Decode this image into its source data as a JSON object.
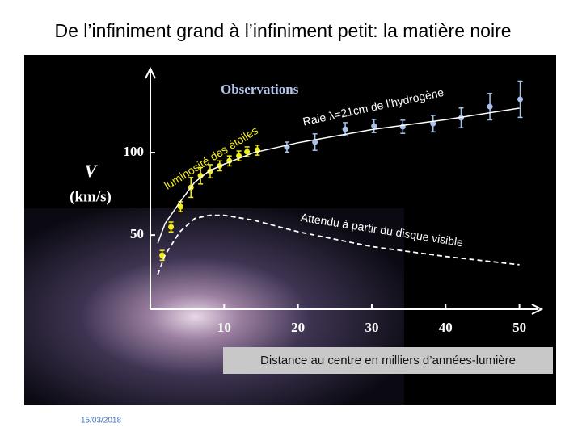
{
  "slide_title": "De l’infiniment grand à l’infiniment petit: la matière noire",
  "date": "15/03/2018",
  "chart_data": {
    "type": "scatter",
    "title": "Observations",
    "ylabel": "V",
    "ylabel_unit": "(km/s)",
    "xlabel": "Distance au centre en milliers d’années-lumière",
    "xlim": [
      0,
      53
    ],
    "ylim": [
      5,
      150
    ],
    "xticks": [
      10,
      20,
      30,
      40,
      50
    ],
    "yticks": [
      50,
      100
    ],
    "series": [
      {
        "name": "luminosité des étoiles",
        "color": "#f2ee1c",
        "style": "points",
        "x": [
          1.6,
          2.8,
          4.1,
          5.5,
          6.8,
          8.1,
          9.4,
          10.7,
          12.0,
          13.1,
          14.5
        ],
        "values": [
          37.7,
          54.9,
          67.2,
          78.9,
          86,
          88.7,
          92,
          95,
          98,
          100.5,
          101.5
        ],
        "errors": [
          3,
          3,
          3,
          6,
          5,
          4,
          3,
          3,
          3,
          3,
          3
        ]
      },
      {
        "name": "Raie λ=21cm de l’hydrogène",
        "color": "#a8c2ec",
        "style": "points",
        "x": [
          18.5,
          22.3,
          26.4,
          30.3,
          34.2,
          38.3,
          42.1,
          46.0,
          50.1
        ],
        "values": [
          103.4,
          106.4,
          114.2,
          116.2,
          115.7,
          117.6,
          121.1,
          127.9,
          132.4
        ],
        "errors": [
          3,
          5,
          4,
          4,
          4,
          5,
          6,
          8,
          11
        ]
      },
      {
        "color": "#ffffff",
        "style": "line",
        "x": [
          1,
          2,
          4,
          6,
          8,
          10,
          14,
          20,
          30,
          40,
          50
        ],
        "values": [
          45,
          57,
          70,
          82,
          89,
          93,
          100,
          106,
          114,
          120,
          127
        ]
      },
      {
        "name": "Attendu à partir du disque visible",
        "color": "#ffffff",
        "style": "dashed",
        "x": [
          1,
          2,
          4,
          6,
          8,
          10,
          14,
          20,
          30,
          40,
          50
        ],
        "values": [
          26,
          38,
          52,
          60,
          62,
          62,
          59,
          52,
          43,
          37,
          32
        ]
      }
    ]
  }
}
